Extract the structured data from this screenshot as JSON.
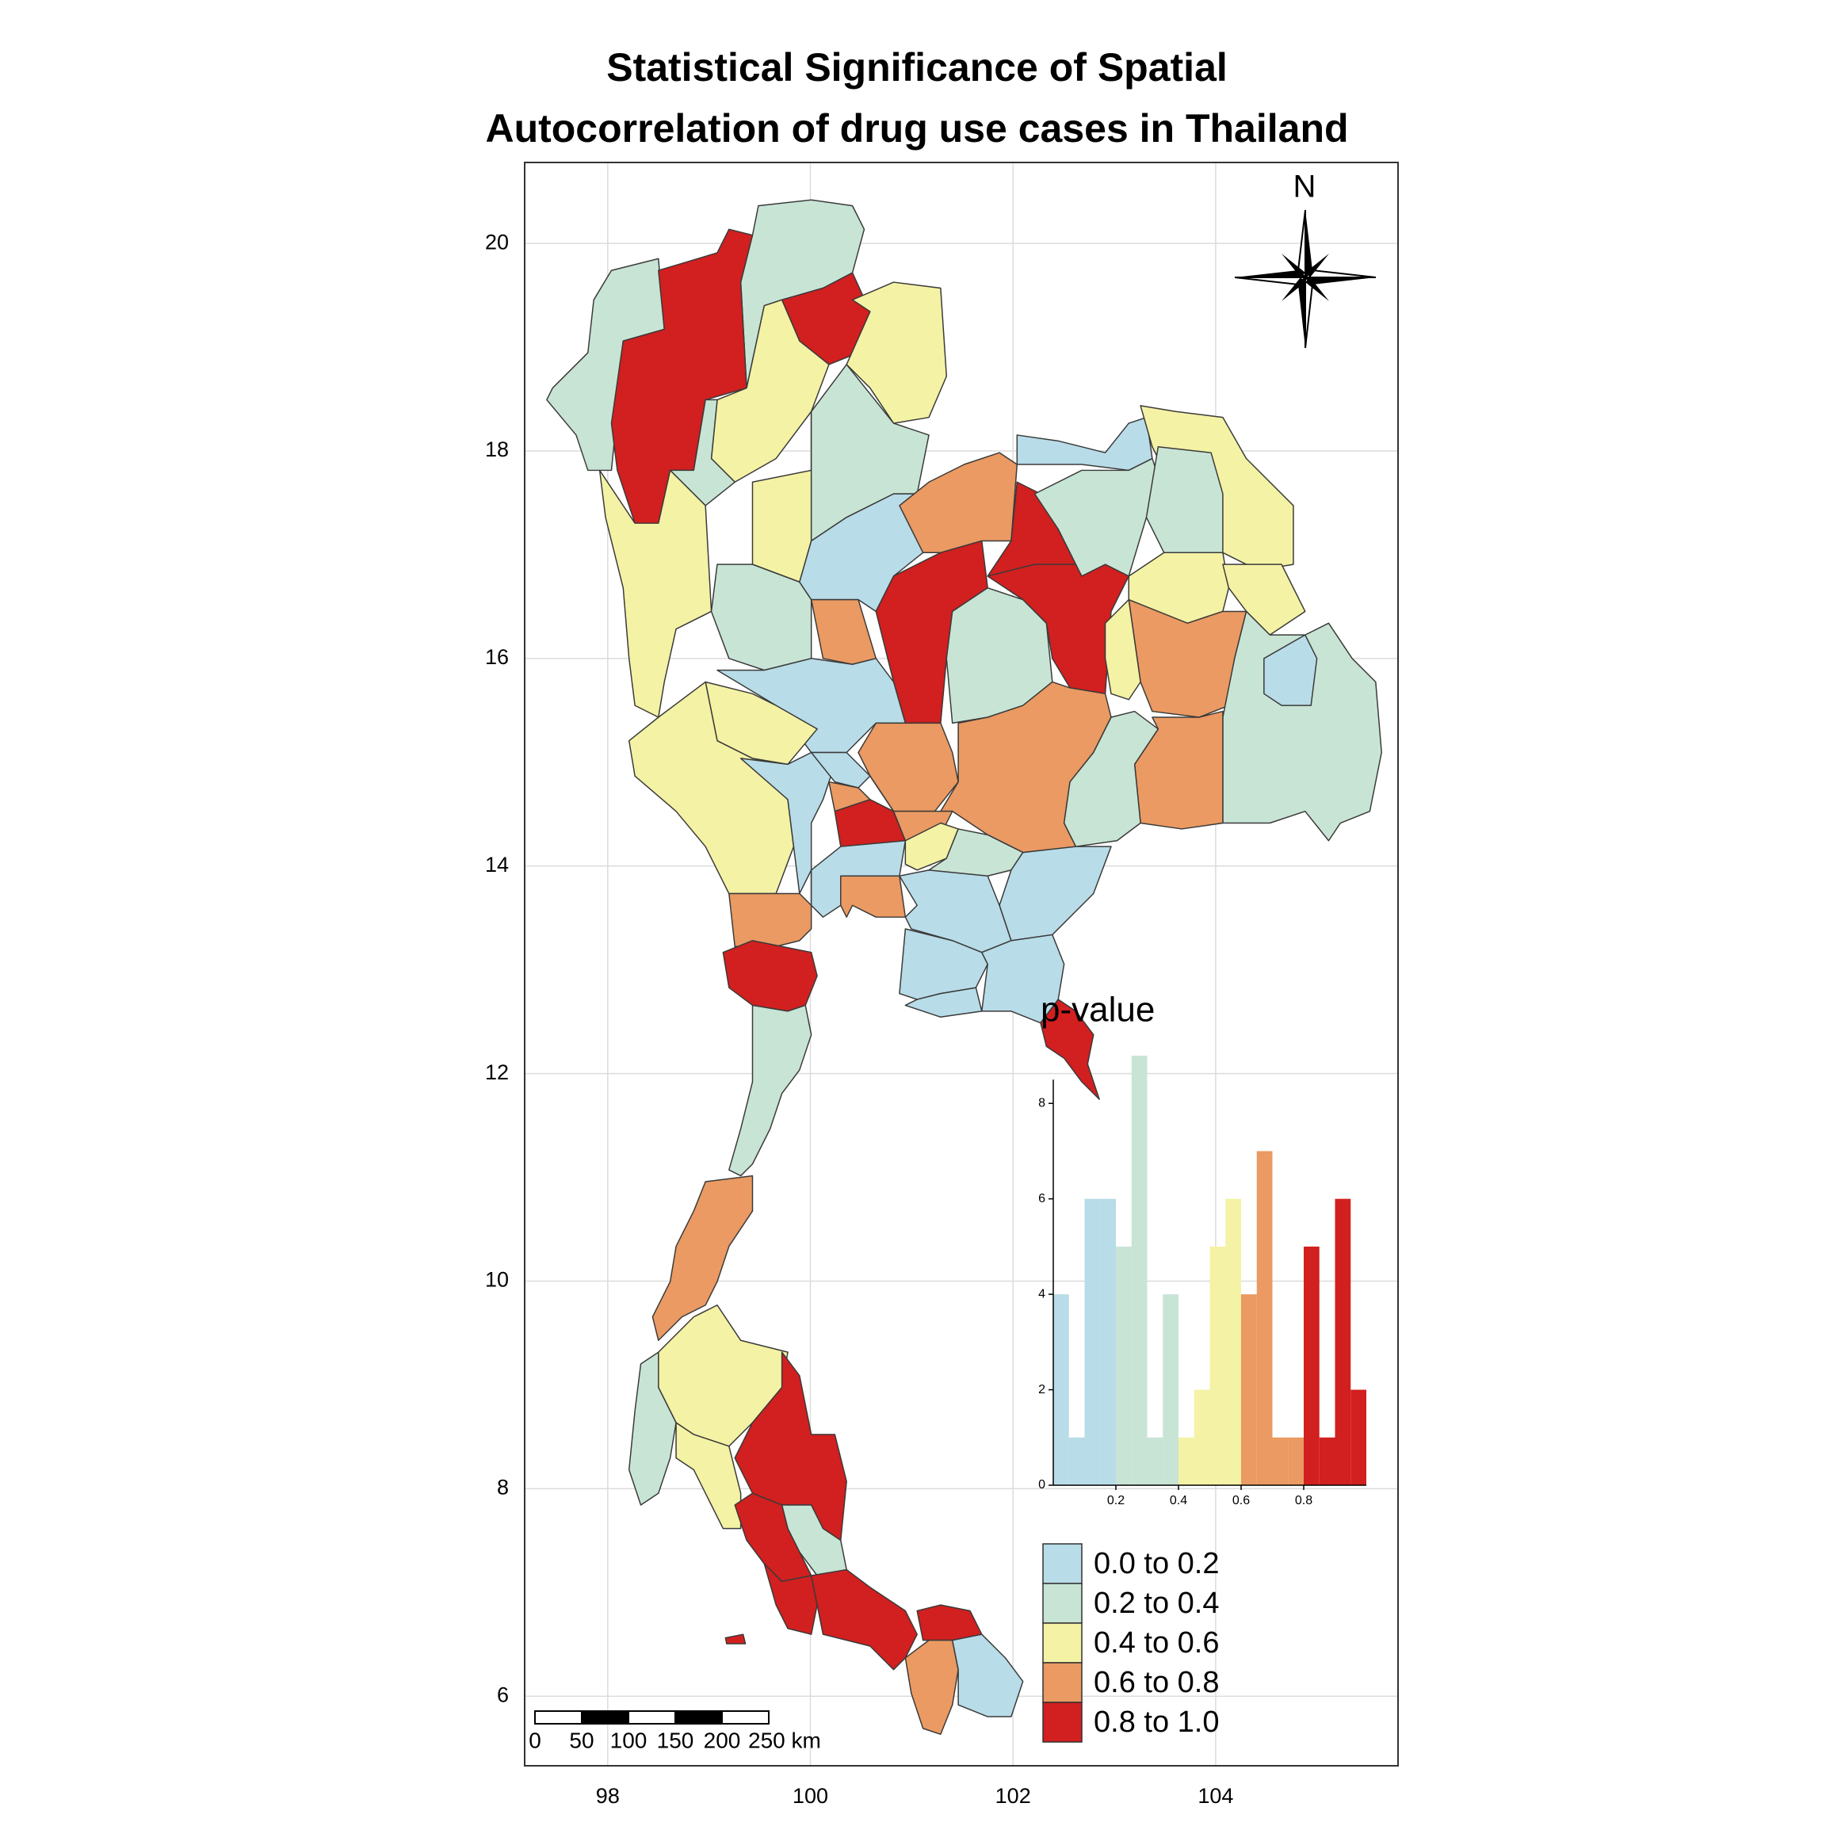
{
  "chart_data": [
    {
      "type": "map",
      "title": [
        "Statistical Significance of Spatial",
        "Autocorrelation of drug use cases in Thailand"
      ],
      "xlim": [
        97.18,
        105.8
      ],
      "ylim": [
        5.33,
        20.78
      ],
      "xticks": [
        98,
        100,
        102,
        104
      ],
      "yticks": [
        6,
        8,
        10,
        12,
        14,
        16,
        18,
        20
      ],
      "grid": true,
      "north_label": "N",
      "scale_bar": {
        "labels": [
          "0",
          "50",
          "100",
          "150",
          "200",
          "250 km"
        ]
      },
      "legend": {
        "position": "bottom-right",
        "entries": [
          {
            "label": "0.0 to 0.2",
            "color": "#b8dce8"
          },
          {
            "label": "0.2 to 0.4",
            "color": "#c8e4d5"
          },
          {
            "label": "0.4 to 0.6",
            "color": "#f4f2a4"
          },
          {
            "label": "0.6 to 0.8",
            "color": "#ea9a62"
          },
          {
            "label": "0.8 to 1.0",
            "color": "#d21f1f"
          }
        ]
      }
    },
    {
      "type": "histogram",
      "title": "p-value",
      "bins": [
        0,
        0.05,
        0.1,
        0.15,
        0.2,
        0.25,
        0.3,
        0.35,
        0.4,
        0.45,
        0.5,
        0.55,
        0.6,
        0.65,
        0.7,
        0.75,
        0.8,
        0.85,
        0.9,
        0.95,
        1
      ],
      "counts": [
        4,
        1,
        6,
        6,
        5,
        9,
        1,
        4,
        1,
        2,
        5,
        6,
        4,
        7,
        1,
        1,
        5,
        1,
        6,
        2
      ],
      "colors": [
        "#b8dce8",
        "#b8dce8",
        "#b8dce8",
        "#b8dce8",
        "#c8e4d5",
        "#c8e4d5",
        "#c8e4d5",
        "#c8e4d5",
        "#f4f2a4",
        "#f4f2a4",
        "#f4f2a4",
        "#f4f2a4",
        "#ea9a62",
        "#ea9a62",
        "#ea9a62",
        "#ea9a62",
        "#d21f1f",
        "#d21f1f",
        "#d21f1f",
        "#d21f1f"
      ],
      "xlim": [
        0,
        1
      ],
      "ylim": [
        0,
        9
      ],
      "xticks": [
        0.2,
        0.4,
        0.6,
        0.8
      ],
      "yticks": [
        0,
        2,
        4,
        6,
        8
      ]
    }
  ]
}
